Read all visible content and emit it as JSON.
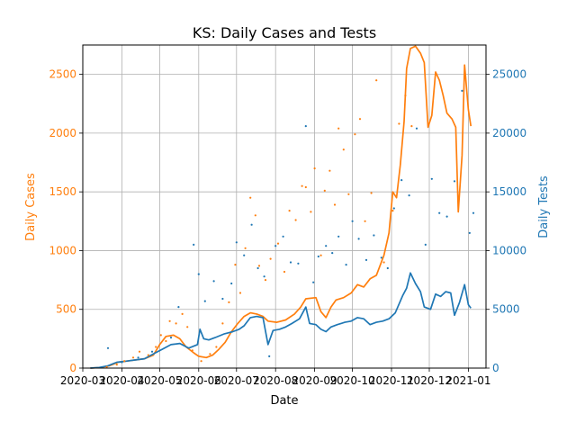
{
  "chart_data": {
    "type": "line",
    "title": "KS: Daily Cases and Tests",
    "xlabel": "Date",
    "ylabel_left": "Daily Cases",
    "ylabel_right": "Daily Tests",
    "xlim": [
      "2020-03-01",
      "2021-01-15"
    ],
    "ylim_left": [
      0,
      2750
    ],
    "ylim_right": [
      0,
      27500
    ],
    "x_ticks": [
      "2020-03",
      "2020-04",
      "2020-05",
      "2020-06",
      "2020-07",
      "2020-08",
      "2020-09",
      "2020-10",
      "2020-11",
      "2020-12",
      "2021-01"
    ],
    "y_ticks_left": [
      0,
      500,
      1000,
      1500,
      2000,
      2500
    ],
    "y_ticks_right": [
      0,
      5000,
      10000,
      15000,
      20000,
      25000
    ],
    "grid": true,
    "colors": {
      "cases": "#ff7f0e",
      "tests": "#1f77b4"
    },
    "series": [
      {
        "axis": "left",
        "style": "line",
        "color": "#ff7f0e",
        "points": [
          [
            "2020-03-07",
            0
          ],
          [
            "2020-03-15",
            5
          ],
          [
            "2020-03-22",
            20
          ],
          [
            "2020-03-29",
            50
          ],
          [
            "2020-04-05",
            60
          ],
          [
            "2020-04-12",
            70
          ],
          [
            "2020-04-19",
            80
          ],
          [
            "2020-04-26",
            110
          ],
          [
            "2020-05-01",
            200
          ],
          [
            "2020-05-06",
            270
          ],
          [
            "2020-05-12",
            280
          ],
          [
            "2020-05-17",
            250
          ],
          [
            "2020-05-22",
            180
          ],
          [
            "2020-05-28",
            130
          ],
          [
            "2020-06-01",
            100
          ],
          [
            "2020-06-07",
            90
          ],
          [
            "2020-06-12",
            110
          ],
          [
            "2020-06-17",
            160
          ],
          [
            "2020-06-22",
            220
          ],
          [
            "2020-06-27",
            310
          ],
          [
            "2020-07-02",
            380
          ],
          [
            "2020-07-07",
            440
          ],
          [
            "2020-07-12",
            470
          ],
          [
            "2020-07-17",
            460
          ],
          [
            "2020-07-22",
            440
          ],
          [
            "2020-07-26",
            400
          ],
          [
            "2020-08-02",
            390
          ],
          [
            "2020-08-09",
            410
          ],
          [
            "2020-08-16",
            460
          ],
          [
            "2020-08-21",
            520
          ],
          [
            "2020-08-25",
            590
          ],
          [
            "2020-09-02",
            600
          ],
          [
            "2020-09-06",
            480
          ],
          [
            "2020-09-10",
            430
          ],
          [
            "2020-09-14",
            520
          ],
          [
            "2020-09-18",
            580
          ],
          [
            "2020-09-24",
            600
          ],
          [
            "2020-09-30",
            640
          ],
          [
            "2020-10-05",
            710
          ],
          [
            "2020-10-10",
            690
          ],
          [
            "2020-10-15",
            760
          ],
          [
            "2020-10-20",
            790
          ],
          [
            "2020-10-26",
            960
          ],
          [
            "2020-10-30",
            1150
          ],
          [
            "2020-11-02",
            1500
          ],
          [
            "2020-11-05",
            1450
          ],
          [
            "2020-11-08",
            1730
          ],
          [
            "2020-11-11",
            2100
          ],
          [
            "2020-11-13",
            2550
          ],
          [
            "2020-11-16",
            2720
          ],
          [
            "2020-11-20",
            2740
          ],
          [
            "2020-11-24",
            2680
          ],
          [
            "2020-11-27",
            2600
          ],
          [
            "2020-11-30",
            2050
          ],
          [
            "2020-12-03",
            2150
          ],
          [
            "2020-12-06",
            2520
          ],
          [
            "2020-12-09",
            2450
          ],
          [
            "2020-12-12",
            2320
          ],
          [
            "2020-12-15",
            2170
          ],
          [
            "2020-12-19",
            2120
          ],
          [
            "2020-12-22",
            2050
          ],
          [
            "2020-12-24",
            1330
          ],
          [
            "2020-12-27",
            1810
          ],
          [
            "2020-12-29",
            2580
          ],
          [
            "2021-01-01",
            2200
          ],
          [
            "2021-01-03",
            2060
          ]
        ]
      },
      {
        "axis": "right",
        "style": "line",
        "color": "#1f77b4",
        "points": [
          [
            "2020-03-07",
            0
          ],
          [
            "2020-03-14",
            50
          ],
          [
            "2020-03-21",
            200
          ],
          [
            "2020-03-28",
            500
          ],
          [
            "2020-04-05",
            600
          ],
          [
            "2020-04-12",
            700
          ],
          [
            "2020-04-19",
            800
          ],
          [
            "2020-04-26",
            1200
          ],
          [
            "2020-05-03",
            1600
          ],
          [
            "2020-05-10",
            2000
          ],
          [
            "2020-05-17",
            2100
          ],
          [
            "2020-05-24",
            1700
          ],
          [
            "2020-05-31",
            2000
          ],
          [
            "2020-06-02",
            3300
          ],
          [
            "2020-06-05",
            2500
          ],
          [
            "2020-06-09",
            2400
          ],
          [
            "2020-06-14",
            2600
          ],
          [
            "2020-06-21",
            2900
          ],
          [
            "2020-06-28",
            3100
          ],
          [
            "2020-07-03",
            3300
          ],
          [
            "2020-07-07",
            3600
          ],
          [
            "2020-07-12",
            4300
          ],
          [
            "2020-07-17",
            4400
          ],
          [
            "2020-07-22",
            4300
          ],
          [
            "2020-07-26",
            2000
          ],
          [
            "2020-07-30",
            3200
          ],
          [
            "2020-08-04",
            3300
          ],
          [
            "2020-08-09",
            3500
          ],
          [
            "2020-08-14",
            3800
          ],
          [
            "2020-08-20",
            4200
          ],
          [
            "2020-08-25",
            5200
          ],
          [
            "2020-08-28",
            3800
          ],
          [
            "2020-09-02",
            3700
          ],
          [
            "2020-09-06",
            3300
          ],
          [
            "2020-09-10",
            3100
          ],
          [
            "2020-09-14",
            3500
          ],
          [
            "2020-09-19",
            3700
          ],
          [
            "2020-09-25",
            3900
          ],
          [
            "2020-09-30",
            4000
          ],
          [
            "2020-10-05",
            4300
          ],
          [
            "2020-10-10",
            4200
          ],
          [
            "2020-10-15",
            3700
          ],
          [
            "2020-10-20",
            3900
          ],
          [
            "2020-10-25",
            4000
          ],
          [
            "2020-10-30",
            4200
          ],
          [
            "2020-11-04",
            4700
          ],
          [
            "2020-11-10",
            6200
          ],
          [
            "2020-11-13",
            6800
          ],
          [
            "2020-11-16",
            8100
          ],
          [
            "2020-11-20",
            7200
          ],
          [
            "2020-11-24",
            6500
          ],
          [
            "2020-11-27",
            5200
          ],
          [
            "2020-12-02",
            5000
          ],
          [
            "2020-12-06",
            6300
          ],
          [
            "2020-12-10",
            6100
          ],
          [
            "2020-12-14",
            6500
          ],
          [
            "2020-12-18",
            6400
          ],
          [
            "2020-12-21",
            4500
          ],
          [
            "2020-12-25",
            5600
          ],
          [
            "2020-12-29",
            7100
          ],
          [
            "2021-01-01",
            5400
          ],
          [
            "2021-01-03",
            5100
          ]
        ]
      },
      {
        "axis": "left",
        "style": "scatter",
        "color": "#ff7f0e",
        "points": [
          [
            "2020-03-20",
            10
          ],
          [
            "2020-03-28",
            30
          ],
          [
            "2020-04-03",
            60
          ],
          [
            "2020-04-10",
            90
          ],
          [
            "2020-04-15",
            140
          ],
          [
            "2020-04-22",
            110
          ],
          [
            "2020-04-28",
            180
          ],
          [
            "2020-05-02",
            280
          ],
          [
            "2020-05-06",
            230
          ],
          [
            "2020-05-09",
            400
          ],
          [
            "2020-05-14",
            380
          ],
          [
            "2020-05-19",
            460
          ],
          [
            "2020-05-23",
            350
          ],
          [
            "2020-05-27",
            150
          ],
          [
            "2020-06-03",
            60
          ],
          [
            "2020-06-10",
            120
          ],
          [
            "2020-06-15",
            180
          ],
          [
            "2020-06-20",
            380
          ],
          [
            "2020-06-25",
            560
          ],
          [
            "2020-06-30",
            880
          ],
          [
            "2020-07-04",
            640
          ],
          [
            "2020-07-08",
            1020
          ],
          [
            "2020-07-12",
            1450
          ],
          [
            "2020-07-16",
            1300
          ],
          [
            "2020-07-19",
            870
          ],
          [
            "2020-07-24",
            750
          ],
          [
            "2020-07-28",
            930
          ],
          [
            "2020-08-03",
            1060
          ],
          [
            "2020-08-08",
            820
          ],
          [
            "2020-08-12",
            1340
          ],
          [
            "2020-08-17",
            1260
          ],
          [
            "2020-08-22",
            1550
          ],
          [
            "2020-08-25",
            1540
          ],
          [
            "2020-08-29",
            1330
          ],
          [
            "2020-09-01",
            1700
          ],
          [
            "2020-09-06",
            960
          ],
          [
            "2020-09-09",
            1510
          ],
          [
            "2020-09-13",
            1680
          ],
          [
            "2020-09-17",
            1390
          ],
          [
            "2020-09-20",
            2040
          ],
          [
            "2020-09-24",
            1860
          ],
          [
            "2020-09-28",
            1480
          ],
          [
            "2020-10-03",
            1990
          ],
          [
            "2020-10-07",
            2120
          ],
          [
            "2020-10-11",
            1250
          ],
          [
            "2020-10-16",
            1490
          ],
          [
            "2020-10-20",
            2450
          ],
          [
            "2020-10-26",
            900
          ],
          [
            "2020-11-02",
            1340
          ],
          [
            "2020-11-07",
            2080
          ],
          [
            "2020-11-12",
            2320
          ],
          [
            "2020-11-17",
            2060
          ]
        ]
      },
      {
        "axis": "right",
        "style": "scatter",
        "color": "#1f77b4",
        "points": [
          [
            "2020-03-21",
            1700
          ],
          [
            "2020-04-01",
            500
          ],
          [
            "2020-04-14",
            900
          ],
          [
            "2020-04-25",
            1400
          ],
          [
            "2020-05-10",
            2600
          ],
          [
            "2020-05-16",
            5200
          ],
          [
            "2020-05-28",
            10500
          ],
          [
            "2020-06-01",
            8000
          ],
          [
            "2020-06-06",
            5700
          ],
          [
            "2020-06-13",
            7400
          ],
          [
            "2020-06-20",
            5900
          ],
          [
            "2020-06-27",
            7200
          ],
          [
            "2020-07-01",
            10700
          ],
          [
            "2020-07-07",
            9600
          ],
          [
            "2020-07-13",
            12200
          ],
          [
            "2020-07-18",
            8500
          ],
          [
            "2020-07-23",
            7800
          ],
          [
            "2020-07-27",
            1000
          ],
          [
            "2020-08-01",
            10400
          ],
          [
            "2020-08-07",
            11200
          ],
          [
            "2020-08-13",
            9000
          ],
          [
            "2020-08-19",
            8900
          ],
          [
            "2020-08-25",
            20600
          ],
          [
            "2020-08-31",
            7300
          ],
          [
            "2020-09-04",
            9500
          ],
          [
            "2020-09-10",
            10400
          ],
          [
            "2020-09-15",
            9800
          ],
          [
            "2020-09-20",
            11200
          ],
          [
            "2020-09-26",
            8800
          ],
          [
            "2020-10-01",
            12500
          ],
          [
            "2020-10-06",
            11000
          ],
          [
            "2020-10-12",
            9200
          ],
          [
            "2020-10-18",
            11300
          ],
          [
            "2020-10-24",
            9400
          ],
          [
            "2020-10-29",
            8500
          ],
          [
            "2020-11-03",
            13600
          ],
          [
            "2020-11-09",
            16000
          ],
          [
            "2020-11-15",
            14700
          ],
          [
            "2020-11-21",
            20400
          ],
          [
            "2020-11-28",
            10500
          ],
          [
            "2020-12-03",
            16100
          ],
          [
            "2020-12-09",
            13200
          ],
          [
            "2020-12-15",
            12900
          ],
          [
            "2020-12-21",
            15900
          ],
          [
            "2020-12-27",
            23600
          ],
          [
            "2021-01-02",
            11500
          ],
          [
            "2021-01-05",
            13200
          ]
        ]
      }
    ]
  }
}
